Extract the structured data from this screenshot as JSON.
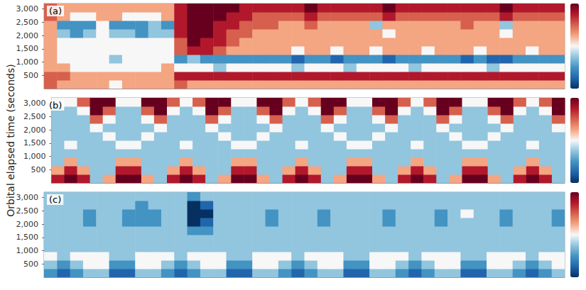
{
  "chart_data": [
    {
      "type": "heatmap",
      "title": "(a)",
      "tick_labels": "y",
      "x": [
        0,
        1,
        2,
        3,
        4,
        5,
        6,
        7,
        8,
        9,
        10,
        11,
        12,
        13,
        14,
        15,
        16,
        17,
        18,
        19,
        20,
        21,
        22,
        23,
        24,
        25,
        26,
        27,
        28,
        29,
        30,
        31,
        32,
        33,
        34,
        35,
        36,
        37,
        38,
        39
      ],
      "y": [
        0,
        320,
        640,
        960,
        1280,
        1600,
        1920,
        2240,
        2560,
        2880
      ],
      "xlim": [
        0,
        40
      ],
      "ylim": [
        0,
        3200
      ],
      "yticks": [
        500,
        1000,
        1500,
        2000,
        2500,
        3000
      ],
      "zlim": [
        -4,
        4
      ],
      "cells": [
        [
          2,
          1,
          1,
          1,
          1,
          0,
          1,
          1,
          1,
          1,
          2,
          1,
          1,
          1,
          1,
          1,
          1,
          1,
          1,
          1,
          1,
          1,
          1,
          1,
          1,
          1,
          1,
          1,
          1,
          1,
          1,
          1,
          1,
          1,
          1,
          1,
          1,
          1,
          1,
          1
        ],
        [
          2,
          2,
          1,
          1,
          1,
          1,
          1,
          1,
          1,
          1,
          3,
          3,
          3,
          3,
          3,
          3,
          3,
          3,
          3,
          3,
          3,
          3,
          3,
          3,
          3,
          3,
          3,
          3,
          3,
          3,
          3,
          3,
          3,
          3,
          3,
          3,
          3,
          3,
          3,
          3
        ],
        [
          1,
          1,
          0,
          0,
          0,
          0,
          0,
          0,
          0,
          1,
          0,
          0,
          0,
          -1,
          0,
          0,
          0,
          0,
          0,
          -1,
          0,
          0,
          0,
          -1,
          0,
          0,
          0,
          0,
          -1,
          0,
          0,
          0,
          0,
          0,
          -1,
          0,
          0,
          0,
          0,
          0
        ],
        [
          1,
          0,
          0,
          0,
          0,
          -1,
          0,
          0,
          0,
          0,
          -2,
          -1,
          -2,
          -2,
          -2,
          -2,
          -2,
          -2,
          -2,
          -3,
          -2,
          -2,
          -3,
          -2,
          -2,
          -2,
          -3,
          -2,
          -2,
          -2,
          -2,
          -2,
          -3,
          -2,
          -3,
          -3,
          -2,
          -2,
          -2,
          -2
        ],
        [
          1,
          0,
          0,
          0,
          0,
          0,
          0,
          0,
          0,
          0,
          2,
          3,
          3,
          2,
          1,
          1,
          1,
          1,
          1,
          0,
          1,
          1,
          0,
          1,
          1,
          0,
          1,
          1,
          1,
          0,
          1,
          1,
          1,
          0,
          1,
          1,
          1,
          0,
          1,
          1
        ],
        [
          1,
          0,
          0,
          0,
          0,
          0,
          0,
          0,
          0,
          0,
          2,
          4,
          3,
          3,
          2,
          1,
          1,
          1,
          1,
          1,
          1,
          1,
          1,
          1,
          1,
          1,
          1,
          1,
          1,
          1,
          1,
          1,
          1,
          1,
          1,
          1,
          1,
          1,
          1,
          1
        ],
        [
          1,
          -1,
          -2,
          -1,
          0,
          -1,
          -1,
          -2,
          -1,
          -1,
          3,
          4,
          4,
          3,
          2,
          2,
          1,
          1,
          1,
          1,
          1,
          1,
          1,
          1,
          1,
          1,
          0,
          1,
          1,
          1,
          1,
          1,
          1,
          1,
          1,
          0,
          1,
          1,
          1,
          1
        ],
        [
          1,
          -2,
          -2,
          -2,
          0,
          -2,
          -2,
          -2,
          -1,
          -2,
          3,
          4,
          4,
          3,
          3,
          2,
          2,
          2,
          1,
          1,
          2,
          1,
          1,
          1,
          1,
          -1,
          1,
          1,
          1,
          1,
          1,
          1,
          2,
          1,
          1,
          -1,
          1,
          1,
          1,
          1
        ],
        [
          2,
          1,
          0,
          0,
          1,
          1,
          0,
          0,
          0,
          1,
          3,
          4,
          4,
          4,
          3,
          3,
          2,
          2,
          2,
          2,
          3,
          2,
          2,
          2,
          2,
          2,
          3,
          2,
          2,
          2,
          2,
          2,
          2,
          2,
          2,
          3,
          2,
          2,
          2,
          2
        ],
        [
          2,
          1,
          1,
          1,
          1,
          1,
          1,
          1,
          1,
          1,
          3,
          4,
          4,
          4,
          4,
          3,
          3,
          3,
          3,
          3,
          4,
          3,
          3,
          3,
          3,
          3,
          4,
          3,
          3,
          3,
          3,
          3,
          3,
          3,
          3,
          4,
          3,
          3,
          3,
          3
        ]
      ]
    },
    {
      "type": "heatmap",
      "title": "(b)",
      "tick_labels": "y",
      "ylabel": "Orbital elapsed time (seconds)",
      "x": [
        0,
        1,
        2,
        3,
        4,
        5,
        6,
        7,
        8,
        9,
        10,
        11,
        12,
        13,
        14,
        15,
        16,
        17,
        18,
        19,
        20,
        21,
        22,
        23,
        24,
        25,
        26,
        27,
        28,
        29,
        30,
        31,
        32,
        33,
        34,
        35,
        36,
        37,
        38,
        39
      ],
      "y": [
        0,
        320,
        640,
        960,
        1280,
        1600,
        1920,
        2240,
        2560,
        2880
      ],
      "xlim": [
        0,
        40
      ],
      "ylim": [
        0,
        3200
      ],
      "yticks": [
        500,
        1000,
        1500,
        2000,
        2500,
        3000
      ],
      "zlim": [
        -4,
        4
      ],
      "cells": [
        [
          3,
          4,
          3,
          -1,
          1,
          4,
          4,
          1,
          -1,
          3,
          4,
          3,
          -1,
          1,
          4,
          4,
          1,
          -1,
          3,
          4,
          3,
          -1,
          1,
          4,
          4,
          1,
          -1,
          3,
          4,
          3,
          -1,
          1,
          4,
          4,
          1,
          -1,
          3,
          4,
          3,
          -1
        ],
        [
          1,
          3,
          1,
          -1,
          -1,
          3,
          3,
          -1,
          -1,
          1,
          3,
          1,
          -1,
          -1,
          3,
          3,
          -1,
          -1,
          1,
          3,
          1,
          -1,
          -1,
          3,
          3,
          -1,
          -1,
          1,
          3,
          1,
          -1,
          -1,
          3,
          3,
          -1,
          -1,
          1,
          3,
          1,
          -1
        ],
        [
          -1,
          1,
          -1,
          -1,
          -1,
          1,
          1,
          -1,
          -1,
          -1,
          1,
          -1,
          -1,
          -1,
          1,
          1,
          -1,
          -1,
          -1,
          1,
          -1,
          -1,
          -1,
          1,
          1,
          -1,
          -1,
          -1,
          1,
          -1,
          -1,
          -1,
          1,
          1,
          -1,
          -1,
          -1,
          1,
          -1,
          -1
        ],
        [
          -1,
          -1,
          -1,
          -1,
          -1,
          -1,
          -1,
          -1,
          -1,
          -1,
          -1,
          -1,
          -1,
          -1,
          -1,
          -1,
          -1,
          -1,
          -1,
          -1,
          -1,
          -1,
          -1,
          -1,
          -1,
          -1,
          -1,
          -1,
          -1,
          -1,
          -1,
          -1,
          -1,
          -1,
          -1,
          -1,
          -1,
          -1,
          -1,
          -1
        ],
        [
          -1,
          0,
          -1,
          -1,
          -1,
          0,
          0,
          -1,
          -1,
          -1,
          0,
          -1,
          -1,
          -1,
          0,
          0,
          -1,
          -1,
          -1,
          0,
          -1,
          -1,
          -1,
          0,
          0,
          -1,
          -1,
          -1,
          0,
          -1,
          -1,
          -1,
          0,
          0,
          -1,
          -1,
          -1,
          0,
          -1,
          -1
        ],
        [
          -1,
          -1,
          -1,
          -1,
          0,
          -1,
          -1,
          0,
          -1,
          -1,
          -1,
          -1,
          -1,
          0,
          -1,
          -1,
          0,
          -1,
          -1,
          -1,
          -1,
          -1,
          0,
          -1,
          -1,
          0,
          -1,
          -1,
          -1,
          -1,
          -1,
          0,
          -1,
          -1,
          0,
          -1,
          -1,
          -1,
          -1,
          -1
        ],
        [
          -1,
          -1,
          -1,
          0,
          -1,
          -1,
          -1,
          -1,
          0,
          -1,
          -1,
          -1,
          0,
          -1,
          -1,
          -1,
          -1,
          0,
          -1,
          -1,
          -1,
          0,
          -1,
          -1,
          -1,
          -1,
          0,
          -1,
          -1,
          -1,
          0,
          -1,
          -1,
          -1,
          -1,
          0,
          -1,
          -1,
          -1,
          0
        ],
        [
          -1,
          -1,
          -1,
          2,
          0,
          -1,
          -1,
          0,
          2,
          -1,
          -1,
          -1,
          2,
          0,
          -1,
          -1,
          0,
          2,
          -1,
          -1,
          -1,
          2,
          0,
          -1,
          -1,
          0,
          2,
          -1,
          -1,
          -1,
          2,
          0,
          -1,
          -1,
          0,
          2,
          -1,
          -1,
          -1,
          2
        ],
        [
          -1,
          -1,
          0,
          4,
          2,
          -1,
          -1,
          2,
          4,
          0,
          -1,
          0,
          4,
          2,
          -1,
          -1,
          2,
          4,
          0,
          -1,
          0,
          4,
          2,
          -1,
          -1,
          2,
          4,
          0,
          -1,
          0,
          4,
          2,
          -1,
          -1,
          2,
          4,
          0,
          -1,
          0,
          4
        ],
        [
          0,
          0,
          2,
          4,
          4,
          0,
          0,
          4,
          4,
          2,
          0,
          2,
          4,
          4,
          0,
          0,
          4,
          4,
          2,
          0,
          2,
          4,
          4,
          0,
          0,
          4,
          4,
          2,
          0,
          2,
          4,
          4,
          0,
          0,
          4,
          4,
          2,
          0,
          2,
          4
        ]
      ]
    },
    {
      "type": "heatmap",
      "title": "(c)",
      "tick_labels": "y",
      "x": [
        0,
        1,
        2,
        3,
        4,
        5,
        6,
        7,
        8,
        9,
        10,
        11,
        12,
        13,
        14,
        15,
        16,
        17,
        18,
        19,
        20,
        21,
        22,
        23,
        24,
        25,
        26,
        27,
        28,
        29,
        30,
        31,
        32,
        33,
        34,
        35,
        36,
        37,
        38,
        39
      ],
      "y": [
        0,
        320,
        640,
        960,
        1280,
        1600,
        1920,
        2240,
        2560,
        2880
      ],
      "xlim": [
        0,
        40
      ],
      "ylim": [
        0,
        3200
      ],
      "yticks": [
        500,
        1000,
        1500,
        2000,
        2500,
        3000
      ],
      "zlim": [
        -4,
        4
      ],
      "cells": [
        [
          -2,
          -3,
          -2,
          -1,
          -1,
          -3,
          -3,
          -1,
          -1,
          -2,
          -3,
          -2,
          -1,
          -1,
          -3,
          -3,
          -1,
          -1,
          -2,
          -3,
          -2,
          -1,
          -1,
          -3,
          -3,
          -1,
          -1,
          -2,
          -3,
          -2,
          -1,
          -1,
          -3,
          -3,
          -1,
          -1,
          -2,
          -3,
          -2,
          -1
        ],
        [
          -1,
          -2,
          -1,
          0,
          0,
          -2,
          -2,
          0,
          0,
          -1,
          -2,
          -1,
          0,
          0,
          -2,
          -2,
          0,
          0,
          -1,
          -2,
          -1,
          0,
          0,
          -2,
          -2,
          0,
          0,
          -1,
          -2,
          -1,
          0,
          0,
          -2,
          -2,
          0,
          0,
          -1,
          -2,
          -1,
          0
        ],
        [
          0,
          -1,
          0,
          0,
          0,
          -1,
          -1,
          0,
          0,
          0,
          -1,
          0,
          0,
          0,
          -1,
          -1,
          0,
          0,
          0,
          -1,
          0,
          0,
          0,
          -1,
          -1,
          0,
          0,
          0,
          -1,
          0,
          0,
          0,
          -1,
          -1,
          0,
          0,
          0,
          -1,
          0,
          0
        ],
        [
          -1,
          -1,
          -1,
          -1,
          -1,
          -1,
          -1,
          -1,
          -1,
          -1,
          -1,
          -1,
          -1,
          -1,
          -1,
          -1,
          -1,
          -1,
          -1,
          -1,
          -1,
          -1,
          -1,
          -1,
          -1,
          -1,
          -1,
          -1,
          -1,
          -1,
          -1,
          -1,
          -1,
          -1,
          -1,
          -1,
          -1,
          -1,
          -1,
          -1
        ],
        [
          -1,
          -1,
          -1,
          -1,
          -1,
          -1,
          -1,
          -1,
          -1,
          -1,
          -1,
          -1,
          -1,
          -1,
          -1,
          -1,
          -1,
          -1,
          -1,
          -1,
          -1,
          -1,
          -1,
          -1,
          -1,
          -1,
          -1,
          -1,
          -1,
          -1,
          -1,
          -1,
          -1,
          -1,
          -1,
          -1,
          -1,
          -1,
          -1,
          -1
        ],
        [
          -1,
          -1,
          -1,
          -1,
          -1,
          -1,
          -1,
          -1,
          -1,
          -1,
          -1,
          -2,
          -2,
          -1,
          -1,
          -1,
          -1,
          -1,
          -1,
          -1,
          -1,
          -1,
          -1,
          -1,
          -1,
          -1,
          -1,
          -1,
          -1,
          -1,
          -1,
          -1,
          -1,
          -1,
          -1,
          -1,
          -1,
          -1,
          -1,
          -1
        ],
        [
          -1,
          -1,
          -1,
          -2,
          -1,
          -1,
          -2,
          -2,
          -2,
          -1,
          -1,
          -4,
          -3,
          -1,
          -1,
          -1,
          -1,
          -2,
          -1,
          -1,
          -1,
          -2,
          -1,
          -1,
          -1,
          -1,
          -2,
          -1,
          -1,
          -1,
          -2,
          -1,
          -1,
          -1,
          -1,
          -2,
          -1,
          -1,
          -1,
          -2
        ],
        [
          -1,
          -1,
          -1,
          -2,
          -1,
          -1,
          -2,
          -2,
          -2,
          -1,
          -1,
          -4,
          -4,
          -1,
          -1,
          -1,
          -1,
          -2,
          -1,
          -1,
          -1,
          -2,
          -1,
          -1,
          -1,
          -1,
          -2,
          -1,
          -1,
          -1,
          -2,
          -1,
          0,
          -1,
          -1,
          -2,
          -1,
          -1,
          -1,
          -2
        ],
        [
          -1,
          -1,
          -1,
          -1,
          -1,
          -1,
          -1,
          -2,
          -1,
          -1,
          -1,
          -4,
          -3,
          -1,
          -1,
          -1,
          -1,
          -1,
          -1,
          -1,
          -1,
          -1,
          -1,
          -1,
          -1,
          -1,
          -1,
          -1,
          -1,
          -1,
          -1,
          -1,
          -1,
          -1,
          -1,
          -1,
          -1,
          -1,
          -1,
          -1
        ],
        [
          -1,
          -1,
          -1,
          -1,
          -1,
          -1,
          -1,
          -1,
          -1,
          -1,
          -1,
          -2,
          -1,
          -1,
          -1,
          -1,
          -1,
          -1,
          -1,
          -1,
          -1,
          -1,
          -1,
          -1,
          -1,
          -1,
          -1,
          -1,
          -1,
          -1,
          -1,
          -1,
          -1,
          -1,
          -1,
          -1,
          -1,
          -1,
          -1,
          -1
        ]
      ]
    }
  ]
}
